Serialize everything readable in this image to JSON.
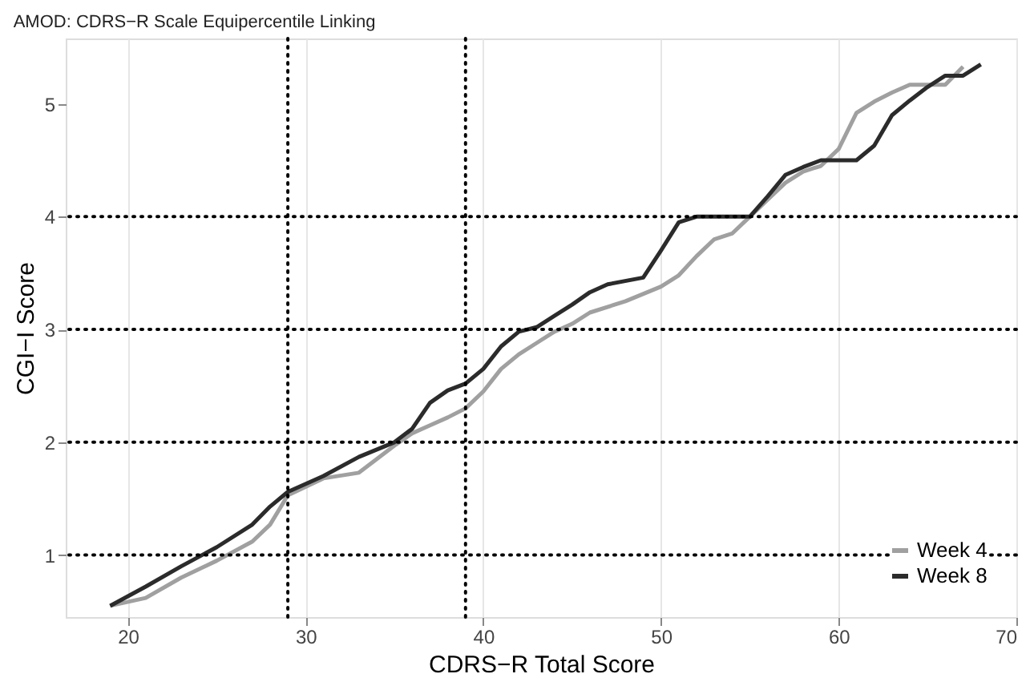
{
  "chart_data": {
    "type": "line",
    "title": "AMOD: CDRS−R Scale Equipercentile Linking",
    "xlabel": "CDRS−R Total Score",
    "ylabel": "CGI−I Score",
    "xlim": [
      16.5,
      70
    ],
    "ylim": [
      0.45,
      5.58
    ],
    "xticks": [
      20,
      30,
      40,
      50,
      60,
      70
    ],
    "yticks": [
      1,
      2,
      3,
      4,
      5
    ],
    "grid": "x",
    "legend": "bottom right",
    "series": [
      {
        "name": "Week 4",
        "color": "#a0a0a0",
        "x": [
          19,
          21,
          23,
          25,
          27,
          28,
          29,
          31,
          33,
          35,
          36,
          37,
          38,
          39,
          40,
          41,
          42,
          43,
          44,
          45,
          46,
          48,
          50,
          51,
          52,
          53,
          54,
          55,
          56,
          57,
          58,
          59,
          60,
          61,
          62,
          63,
          64,
          66,
          67
        ],
        "values": [
          0.55,
          0.62,
          0.8,
          0.95,
          1.12,
          1.27,
          1.53,
          1.68,
          1.73,
          1.97,
          2.08,
          2.15,
          2.22,
          2.3,
          2.45,
          2.65,
          2.78,
          2.88,
          2.98,
          3.05,
          3.15,
          3.25,
          3.38,
          3.48,
          3.65,
          3.8,
          3.85,
          4.0,
          4.15,
          4.3,
          4.4,
          4.45,
          4.6,
          4.92,
          5.02,
          5.1,
          5.17,
          5.17,
          5.33
        ]
      },
      {
        "name": "Week 8",
        "color": "#2b2b2b",
        "x": [
          19,
          21,
          23,
          25,
          27,
          28,
          29,
          31,
          33,
          35,
          36,
          37,
          38,
          39,
          40,
          41,
          42,
          43,
          44,
          45,
          46,
          47,
          49,
          50,
          51,
          52,
          55,
          56,
          57,
          58,
          59,
          61,
          62,
          63,
          64,
          65,
          66,
          67,
          68
        ],
        "values": [
          0.55,
          0.72,
          0.9,
          1.07,
          1.27,
          1.43,
          1.56,
          1.7,
          1.87,
          2.0,
          2.12,
          2.35,
          2.46,
          2.52,
          2.65,
          2.85,
          2.98,
          3.02,
          3.12,
          3.22,
          3.33,
          3.4,
          3.46,
          3.7,
          3.95,
          4.0,
          4.0,
          4.18,
          4.37,
          4.44,
          4.5,
          4.5,
          4.63,
          4.9,
          5.03,
          5.15,
          5.25,
          5.25,
          5.35
        ]
      }
    ],
    "ref_lines": [
      {
        "axis": "x",
        "value": 29,
        "line_style": "dotted",
        "color": "#000000"
      },
      {
        "axis": "x",
        "value": 39,
        "line_style": "dotted",
        "color": "#000000"
      },
      {
        "axis": "y",
        "value": 1,
        "line_style": "dotted",
        "color": "#000000"
      },
      {
        "axis": "y",
        "value": 2,
        "line_style": "dotted",
        "color": "#000000"
      },
      {
        "axis": "y",
        "value": 3,
        "line_style": "dotted",
        "color": "#000000"
      },
      {
        "axis": "y",
        "value": 4,
        "line_style": "dotted",
        "color": "#000000"
      }
    ]
  }
}
